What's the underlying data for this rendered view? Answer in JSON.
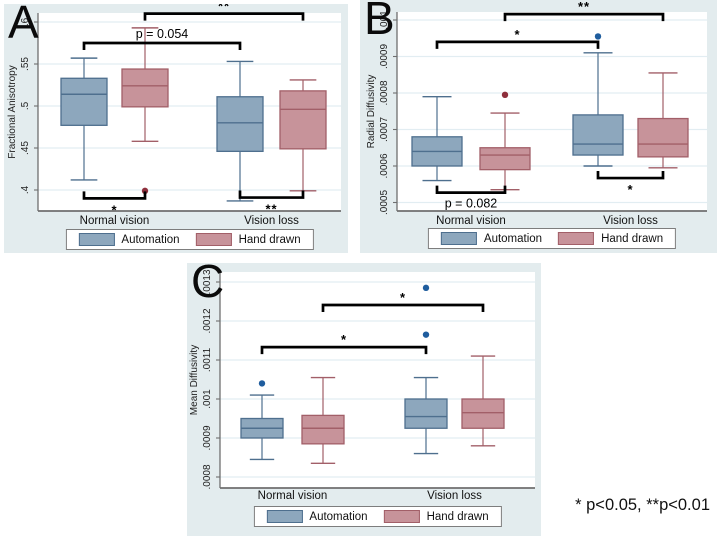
{
  "figure": {
    "footnote": "* p<0.05, **p<0.01",
    "colors": {
      "panel_bg": "#e3ecee",
      "plot_bg": "#ffffff",
      "grid": "#e2edf2",
      "axis": "#6f6f6f",
      "bracket": "#000000",
      "series": [
        {
          "name": "Automation",
          "fill": "#8da7bd",
          "stroke": "#4e6f8e",
          "outlier": "#1f5d9e"
        },
        {
          "name": "Hand drawn",
          "fill": "#c7939a",
          "stroke": "#a25f68",
          "outlier": "#8e2f3c"
        }
      ]
    }
  },
  "legend": {
    "items": [
      {
        "label": "Automation"
      },
      {
        "label": "Hand drawn"
      }
    ]
  },
  "chart_data": [
    {
      "type": "box",
      "panel": "A",
      "ylabel": "Fractional Anisotropy",
      "xlabel": "",
      "categories": [
        "Normal vision",
        "Vision loss"
      ],
      "series": [
        "Automation",
        "Hand drawn"
      ],
      "yticks": {
        "labels": [
          ".4",
          ".45",
          ".5",
          ".55",
          ".6"
        ],
        "values": [
          0.4,
          0.45,
          0.5,
          0.55,
          0.6
        ]
      },
      "ylim": [
        0.375,
        0.611
      ],
      "grid": true,
      "legend_position": "bottom",
      "boxes": [
        {
          "category": "Normal vision",
          "series": "Automation",
          "low": 0.412,
          "q1": 0.477,
          "median": 0.514,
          "q3": 0.533,
          "high": 0.557,
          "outliers": []
        },
        {
          "category": "Normal vision",
          "series": "Hand drawn",
          "low": 0.458,
          "q1": 0.499,
          "median": 0.524,
          "q3": 0.544,
          "high": 0.593,
          "outliers": [
            0.399
          ]
        },
        {
          "category": "Vision loss",
          "series": "Automation",
          "low": 0.387,
          "q1": 0.446,
          "median": 0.48,
          "q3": 0.511,
          "high": 0.553,
          "outliers": []
        },
        {
          "category": "Vision loss",
          "series": "Hand drawn",
          "low": 0.399,
          "q1": 0.449,
          "median": 0.496,
          "q3": 0.518,
          "high": 0.531,
          "outliers": []
        }
      ],
      "annotations": [
        {
          "label": "**",
          "side": "top",
          "y": 0.61,
          "x1": {
            "category": "Normal vision",
            "series": "Hand drawn"
          },
          "x2": {
            "category": "Vision loss",
            "series": "Hand drawn"
          }
        },
        {
          "label": "p = 0.054",
          "side": "top",
          "y": 0.575,
          "x1": {
            "category": "Normal vision",
            "series": "Automation"
          },
          "x2": {
            "category": "Vision loss",
            "series": "Automation"
          }
        },
        {
          "label": "*",
          "side": "bottom",
          "y": 0.39,
          "x1": {
            "category": "Normal vision",
            "series": "Automation"
          },
          "x2": {
            "category": "Normal vision",
            "series": "Hand drawn"
          }
        },
        {
          "label": "**",
          "side": "bottom",
          "y": 0.391,
          "x1": {
            "category": "Vision loss",
            "series": "Automation"
          },
          "x2": {
            "category": "Vision loss",
            "series": "Hand drawn"
          }
        }
      ]
    },
    {
      "type": "box",
      "panel": "B",
      "ylabel": "Radial Diffusivity",
      "xlabel": "",
      "categories": [
        "Normal vision",
        "Vision loss"
      ],
      "series": [
        "Automation",
        "Hand drawn"
      ],
      "yticks": {
        "labels": [
          ".0005",
          ".0006",
          ".0007",
          ".0008",
          ".0009",
          ".001"
        ],
        "values": [
          0.0005,
          0.0006,
          0.0007,
          0.0008,
          0.0009,
          0.001
        ]
      },
      "ylim": [
        0.000477,
        0.001022
      ],
      "grid": true,
      "legend_position": "bottom",
      "boxes": [
        {
          "category": "Normal vision",
          "series": "Automation",
          "low": 0.00056,
          "q1": 0.0006,
          "median": 0.00064,
          "q3": 0.00068,
          "high": 0.00079,
          "outliers": []
        },
        {
          "category": "Normal vision",
          "series": "Hand drawn",
          "low": 0.000535,
          "q1": 0.00059,
          "median": 0.00063,
          "q3": 0.00065,
          "high": 0.000745,
          "outliers": [
            0.000795
          ]
        },
        {
          "category": "Vision loss",
          "series": "Automation",
          "low": 0.0006,
          "q1": 0.00063,
          "median": 0.00066,
          "q3": 0.00074,
          "high": 0.00091,
          "outliers": [
            0.000955
          ]
        },
        {
          "category": "Vision loss",
          "series": "Hand drawn",
          "low": 0.000595,
          "q1": 0.000625,
          "median": 0.00066,
          "q3": 0.00073,
          "high": 0.000855,
          "outliers": []
        }
      ],
      "annotations": [
        {
          "label": "**",
          "side": "top",
          "y": 0.001016,
          "x1": {
            "category": "Normal vision",
            "series": "Hand drawn"
          },
          "x2": {
            "category": "Vision loss",
            "series": "Hand drawn"
          }
        },
        {
          "label": "*",
          "side": "top",
          "y": 0.00094,
          "x1": {
            "category": "Normal vision",
            "series": "Automation"
          },
          "x2": {
            "category": "Vision loss",
            "series": "Automation"
          }
        },
        {
          "label": "p = 0.082",
          "side": "bottom",
          "y": 0.000527,
          "x1": {
            "category": "Normal vision",
            "series": "Automation"
          },
          "x2": {
            "category": "Normal vision",
            "series": "Hand drawn"
          }
        },
        {
          "label": "*",
          "side": "bottom",
          "y": 0.000567,
          "x1": {
            "category": "Vision loss",
            "series": "Automation"
          },
          "x2": {
            "category": "Vision loss",
            "series": "Hand drawn"
          }
        }
      ]
    },
    {
      "type": "box",
      "panel": "C",
      "ylabel": "Mean Diffusivity",
      "xlabel": "",
      "categories": [
        "Normal vision",
        "Vision loss"
      ],
      "series": [
        "Automation",
        "Hand drawn"
      ],
      "yticks": {
        "labels": [
          ".0008",
          ".0009",
          ".001",
          ".0011",
          ".0012",
          ".0013"
        ],
        "values": [
          0.0008,
          0.0009,
          0.001,
          0.0011,
          0.0012,
          0.0013
        ]
      },
      "ylim": [
        0.000772,
        0.001326
      ],
      "grid": true,
      "legend_position": "bottom",
      "boxes": [
        {
          "category": "Normal vision",
          "series": "Automation",
          "low": 0.000845,
          "q1": 0.0009,
          "median": 0.000925,
          "q3": 0.00095,
          "high": 0.00101,
          "outliers": [
            0.00104
          ]
        },
        {
          "category": "Normal vision",
          "series": "Hand drawn",
          "low": 0.000835,
          "q1": 0.000885,
          "median": 0.000925,
          "q3": 0.000958,
          "high": 0.001055,
          "outliers": []
        },
        {
          "category": "Vision loss",
          "series": "Automation",
          "low": 0.00086,
          "q1": 0.000925,
          "median": 0.000955,
          "q3": 0.001,
          "high": 0.001055,
          "outliers": [
            0.001165,
            0.001285
          ]
        },
        {
          "category": "Vision loss",
          "series": "Hand drawn",
          "low": 0.00088,
          "q1": 0.000925,
          "median": 0.000965,
          "q3": 0.001,
          "high": 0.00111,
          "outliers": []
        }
      ],
      "annotations": [
        {
          "label": "*",
          "side": "top",
          "y": 0.001241,
          "x1": {
            "category": "Normal vision",
            "series": "Hand drawn"
          },
          "x2": {
            "category": "Vision loss",
            "series": "Hand drawn"
          }
        },
        {
          "label": "*",
          "side": "top",
          "y": 0.001133,
          "x1": {
            "category": "Normal vision",
            "series": "Automation"
          },
          "x2": {
            "category": "Vision loss",
            "series": "Automation"
          }
        }
      ]
    }
  ]
}
